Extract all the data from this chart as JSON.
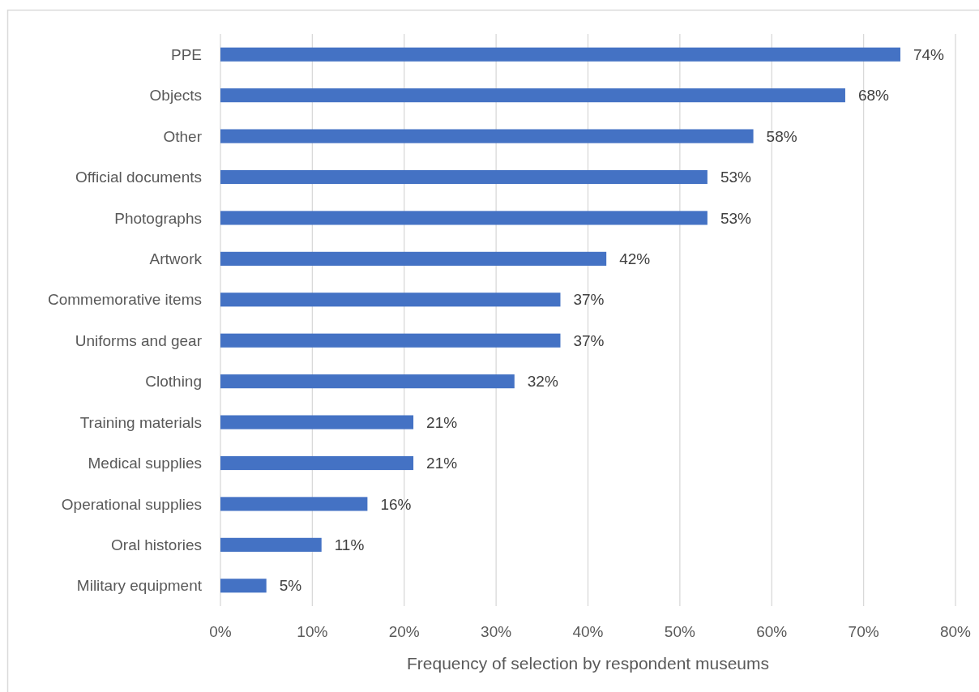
{
  "chart_data": {
    "type": "bar",
    "orientation": "horizontal",
    "xlabel": "Frequency of selection by respondent museums",
    "categories": [
      "PPE",
      "Objects",
      "Other",
      "Official documents",
      "Photographs",
      "Artwork",
      "Commemorative items",
      "Uniforms and gear",
      "Clothing",
      "Training materials",
      "Medical supplies",
      "Operational supplies",
      "Oral histories",
      "Military equipment"
    ],
    "values": [
      74,
      68,
      58,
      53,
      53,
      42,
      37,
      37,
      32,
      21,
      21,
      16,
      11,
      5
    ],
    "value_labels": [
      "74%",
      "68%",
      "58%",
      "53%",
      "53%",
      "42%",
      "37%",
      "37%",
      "32%",
      "21%",
      "21%",
      "16%",
      "11%",
      "5%"
    ],
    "color": "#4472c4",
    "xlim": [
      0,
      80
    ],
    "xticks": [
      {
        "value": 0,
        "label": "0%"
      },
      {
        "value": 10,
        "label": "10%"
      },
      {
        "value": 20,
        "label": "20%"
      },
      {
        "value": 30,
        "label": "30%"
      },
      {
        "value": 40,
        "label": "40%"
      },
      {
        "value": 50,
        "label": "50%"
      },
      {
        "value": 60,
        "label": "60%"
      },
      {
        "value": 70,
        "label": "70%"
      },
      {
        "value": 80,
        "label": "80%"
      }
    ],
    "grid": "x"
  }
}
